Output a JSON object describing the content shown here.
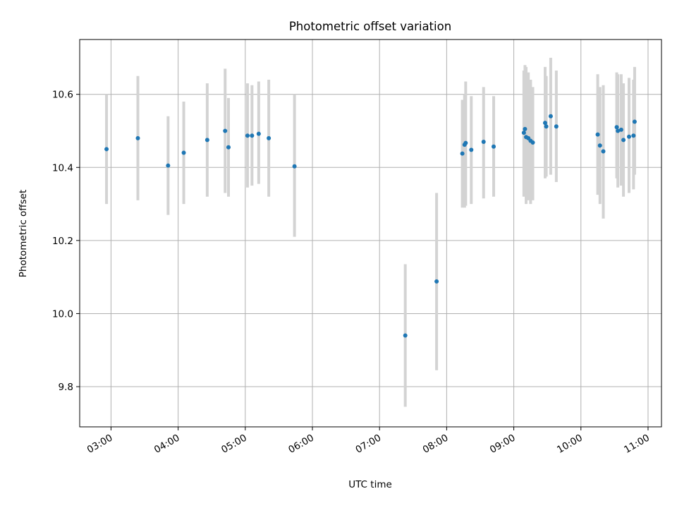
{
  "chart_data": {
    "type": "scatter",
    "title": "Photometric offset variation",
    "xlabel": "UTC time",
    "ylabel": "Photometric offset",
    "xlim": [
      "02:32",
      "11:12"
    ],
    "ylim": [
      9.69,
      10.75
    ],
    "xticks": [
      "03:00",
      "04:00",
      "05:00",
      "06:00",
      "07:00",
      "08:00",
      "09:00",
      "10:00",
      "11:00"
    ],
    "yticks": [
      9.8,
      10.0,
      10.2,
      10.4,
      10.6
    ],
    "grid": true,
    "legend": "none",
    "colors": {
      "point": "#1f77b4",
      "errorbar": "#d3d3d3",
      "grid": "#b0b0b0",
      "axis": "#000000"
    },
    "series": [
      {
        "points": [
          {
            "x": "02:56",
            "y": 10.45,
            "yerr": [
              10.3,
              10.6
            ]
          },
          {
            "x": "03:24",
            "y": 10.48,
            "yerr": [
              10.31,
              10.65
            ]
          },
          {
            "x": "03:51",
            "y": 10.405,
            "yerr": [
              10.27,
              10.54
            ]
          },
          {
            "x": "04:05",
            "y": 10.44,
            "yerr": [
              10.3,
              10.58
            ]
          },
          {
            "x": "04:26",
            "y": 10.475,
            "yerr": [
              10.32,
              10.63
            ]
          },
          {
            "x": "04:42",
            "y": 10.5,
            "yerr": [
              10.33,
              10.67
            ]
          },
          {
            "x": "04:45",
            "y": 10.455,
            "yerr": [
              10.32,
              10.59
            ]
          },
          {
            "x": "05:02",
            "y": 10.487,
            "yerr": [
              10.345,
              10.63
            ]
          },
          {
            "x": "05:06",
            "y": 10.487,
            "yerr": [
              10.35,
              10.625
            ]
          },
          {
            "x": "05:12",
            "y": 10.492,
            "yerr": [
              10.355,
              10.635
            ]
          },
          {
            "x": "05:21",
            "y": 10.48,
            "yerr": [
              10.32,
              10.64
            ]
          },
          {
            "x": "05:44",
            "y": 10.403,
            "yerr": [
              10.21,
              10.6
            ]
          },
          {
            "x": "07:23",
            "y": 9.94,
            "yerr": [
              9.745,
              10.135
            ]
          },
          {
            "x": "07:51",
            "y": 10.088,
            "yerr": [
              9.845,
              10.33
            ]
          },
          {
            "x": "08:14",
            "y": 10.438,
            "yerr": [
              10.29,
              10.585
            ]
          },
          {
            "x": "08:16",
            "y": 10.462,
            "yerr": [
              10.29,
              10.6
            ]
          },
          {
            "x": "08:17",
            "y": 10.467,
            "yerr": [
              10.295,
              10.635
            ]
          },
          {
            "x": "08:22",
            "y": 10.448,
            "yerr": [
              10.3,
              10.595
            ]
          },
          {
            "x": "08:33",
            "y": 10.47,
            "yerr": [
              10.315,
              10.62
            ]
          },
          {
            "x": "08:42",
            "y": 10.457,
            "yerr": [
              10.32,
              10.595
            ]
          },
          {
            "x": "09:09",
            "y": 10.495,
            "yerr": [
              10.32,
              10.665
            ]
          },
          {
            "x": "09:10",
            "y": 10.505,
            "yerr": [
              10.33,
              10.68
            ]
          },
          {
            "x": "09:11",
            "y": 10.483,
            "yerr": [
              10.3,
              10.675
            ]
          },
          {
            "x": "09:13",
            "y": 10.48,
            "yerr": [
              10.31,
              10.66
            ]
          },
          {
            "x": "09:15",
            "y": 10.473,
            "yerr": [
              10.3,
              10.64
            ]
          },
          {
            "x": "09:17",
            "y": 10.468,
            "yerr": [
              10.31,
              10.62
            ]
          },
          {
            "x": "09:28",
            "y": 10.522,
            "yerr": [
              10.37,
              10.675
            ]
          },
          {
            "x": "09:29",
            "y": 10.512,
            "yerr": [
              10.375,
              10.65
            ]
          },
          {
            "x": "09:33",
            "y": 10.54,
            "yerr": [
              10.38,
              10.7
            ]
          },
          {
            "x": "09:38",
            "y": 10.512,
            "yerr": [
              10.36,
              10.665
            ]
          },
          {
            "x": "10:15",
            "y": 10.49,
            "yerr": [
              10.325,
              10.655
            ]
          },
          {
            "x": "10:17",
            "y": 10.46,
            "yerr": [
              10.3,
              10.62
            ]
          },
          {
            "x": "10:20",
            "y": 10.444,
            "yerr": [
              10.26,
              10.625
            ]
          },
          {
            "x": "10:32",
            "y": 10.51,
            "yerr": [
              10.37,
              10.66
            ]
          },
          {
            "x": "10:33",
            "y": 10.5,
            "yerr": [
              10.345,
              10.655
            ]
          },
          {
            "x": "10:36",
            "y": 10.503,
            "yerr": [
              10.35,
              10.655
            ]
          },
          {
            "x": "10:38",
            "y": 10.475,
            "yerr": [
              10.32,
              10.63
            ]
          },
          {
            "x": "10:43",
            "y": 10.484,
            "yerr": [
              10.33,
              10.645
            ]
          },
          {
            "x": "10:47",
            "y": 10.487,
            "yerr": [
              10.34,
              10.64
            ]
          },
          {
            "x": "10:48",
            "y": 10.525,
            "yerr": [
              10.38,
              10.675
            ]
          }
        ]
      }
    ]
  }
}
